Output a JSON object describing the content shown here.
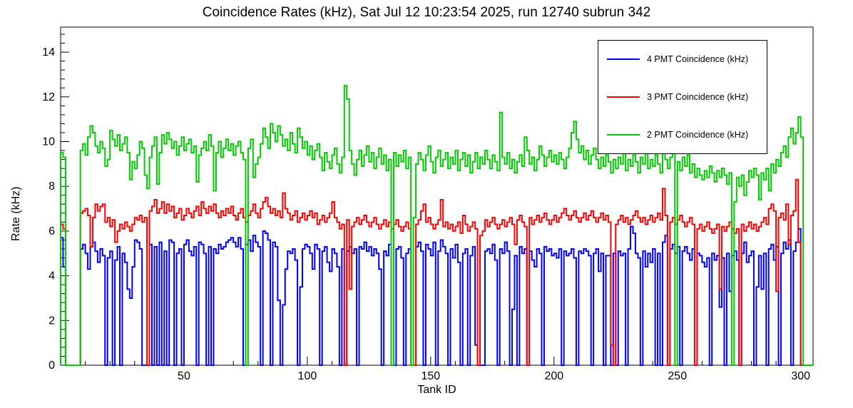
{
  "title": "Coincidence Rates (kHz), Sat Jul 12 10:23:54 2025, run 12740 subrun 342",
  "chart_data": {
    "type": "line",
    "style": "step-histogram",
    "title": "Coincidence Rates (kHz), Sat Jul 12 10:23:54 2025, run 12740 subrun 342",
    "xlabel": "Tank ID",
    "ylabel": "Rate (kHz)",
    "xlim": [
      0,
      305
    ],
    "ylim": [
      0,
      15.12
    ],
    "grid": false,
    "legend_position": "top-right",
    "x_major_ticks": [
      50,
      100,
      150,
      200,
      250,
      300
    ],
    "x_minor_step": 10,
    "y_major_ticks": [
      0,
      2,
      4,
      6,
      8,
      10,
      12,
      14
    ],
    "y_minor_step": 0.4,
    "series": [
      {
        "name": "4 PMT Coincidence (kHz)",
        "color": "#0000ff",
        "values": [
          5.7,
          4.4,
          0,
          0,
          0,
          0,
          0,
          0,
          5.2,
          5.4,
          5.0,
          4.3,
          5.3,
          5.5,
          5.1,
          4.6,
          5.2,
          4.9,
          0,
          4.8,
          5.1,
          0,
          4.7,
          5.3,
          0,
          5.0,
          4.6,
          3.4,
          3.0,
          4.4,
          5.6,
          5.5,
          5.2,
          0,
          0,
          0,
          5.4,
          0,
          5.3,
          0,
          5.5,
          0,
          5.1,
          0,
          5.6,
          5.5,
          0,
          5.0,
          5.2,
          0,
          5.4,
          5.6,
          5.1,
          4.9,
          5.3,
          0,
          5.5,
          5.4,
          5.0,
          0,
          5.3,
          0,
          5.2,
          5.0,
          5.4,
          5.2,
          5.3,
          5.5,
          5.6,
          5.7,
          5.5,
          5.3,
          5.7,
          5.2,
          0,
          5.4,
          5.6,
          5.1,
          5.8,
          5.5,
          5.3,
          0,
          6.0,
          5.9,
          5.6,
          0,
          5.5,
          5.3,
          2.9,
          0,
          2.7,
          4.3,
          5.1,
          5.0,
          5.2,
          4.7,
          0,
          3.5,
          5.2,
          5.4,
          5.3,
          5.0,
          4.3,
          5.4,
          5.2,
          0,
          5.1,
          5.3,
          4.6,
          4.2,
          5.2,
          5.0,
          4.4,
          0,
          5.2,
          0,
          5.1,
          5.3,
          5.0,
          5.2,
          0,
          5.3,
          5.2,
          5.5,
          5.1,
          5.3,
          4.9,
          5.2,
          5.0,
          4.3,
          0,
          5.1,
          4.9,
          5.4,
          0,
          0,
          5.2,
          5.3,
          4.8,
          0,
          5.0,
          5.2,
          0,
          0,
          5.3,
          5.5,
          5.1,
          0,
          5.4,
          5.2,
          4.9,
          5.5,
          0,
          5.1,
          5.6,
          5.3,
          5.0,
          0,
          5.2,
          4.8,
          5.4,
          4.6,
          0,
          5.0,
          5.2,
          0,
          4.9,
          5.3,
          0.9,
          0,
          0,
          0,
          5.1,
          5.2,
          5.0,
          5.4,
          4.7,
          0,
          5.2,
          5.0,
          5.5,
          5.1,
          0,
          2.5,
          4.9,
          0,
          5.3,
          5.0,
          5.2,
          0,
          5.1,
          4.7,
          4.4,
          5.2,
          5.0,
          0,
          5.3,
          5.1,
          5.2,
          4.9,
          5.0,
          4.8,
          5.2,
          0,
          5.1,
          4.9,
          5.0,
          5.2,
          4.8,
          0,
          5.1,
          5.0,
          5.2,
          5.1,
          4.9,
          0,
          5.0,
          5.2,
          4.2,
          5.0,
          0,
          4.9,
          4.9,
          0,
          5.0,
          0,
          5.1,
          4.9,
          5.0,
          0,
          5.2,
          6.2,
          5.9,
          5.0,
          4.8,
          0,
          5.1,
          4.4,
          5.0,
          4.6,
          5.2,
          0,
          5.0,
          0,
          5.5,
          5.8,
          0,
          5.2,
          5.4,
          5.0,
          5.3,
          0,
          5.1,
          5.3,
          5.0,
          4.7,
          5.2,
          0,
          5.0,
          4.9,
          4.6,
          4.4,
          4.8,
          0,
          5.0,
          4.7,
          4.9,
          2.6,
          4.8,
          0,
          5.0,
          3.3,
          4.9,
          5.1,
          4.7,
          0,
          5.0,
          5.5,
          4.6,
          4.9,
          5.1,
          0,
          3.5,
          4.9,
          3.4,
          5.0,
          0,
          5.2,
          5.4,
          4.7,
          5.3,
          0,
          5.0,
          5.5,
          5.2,
          5.6,
          0,
          5.1,
          5.5,
          6.1,
          0,
          0,
          0,
          0,
          0
        ]
      },
      {
        "name": "3 PMT Coincidence (kHz)",
        "color": "#ff0000",
        "values": [
          6.3,
          6.1,
          0,
          0,
          0,
          0,
          0,
          0,
          6.8,
          6.9,
          7.0,
          6.7,
          5.3,
          6.6,
          7.2,
          6.9,
          7.1,
          7.2,
          6.4,
          6.6,
          6.2,
          6.5,
          5.5,
          6.0,
          6.3,
          6.1,
          6.4,
          6.2,
          6.0,
          6.3,
          6.6,
          6.5,
          6.7,
          6.4,
          6.6,
          0,
          6.9,
          7.1,
          7.4,
          6.8,
          7.0,
          7.3,
          6.8,
          7.2,
          6.9,
          7.1,
          6.6,
          6.8,
          7.0,
          6.5,
          6.7,
          7.0,
          6.8,
          6.6,
          6.9,
          7.1,
          6.7,
          7.3,
          7.0,
          6.8,
          7.1,
          6.9,
          7.2,
          6.8,
          6.6,
          6.9,
          6.7,
          7.0,
          6.8,
          7.1,
          6.7,
          6.5,
          6.8,
          7.0,
          6.6,
          6.4,
          6.7,
          6.9,
          7.2,
          6.8,
          6.6,
          7.0,
          7.3,
          7.5,
          7.1,
          6.8,
          7.0,
          6.7,
          6.9,
          6.6,
          7.7,
          7.0,
          6.8,
          6.5,
          6.7,
          6.9,
          6.4,
          6.6,
          6.8,
          6.5,
          6.7,
          6.9,
          6.6,
          6.8,
          6.3,
          6.5,
          6.7,
          6.4,
          6.6,
          6.8,
          7.3,
          6.6,
          6.4,
          6.1,
          6.3,
          0,
          6.5,
          3.4,
          6.2,
          6.4,
          6.6,
          6.3,
          6.5,
          6.7,
          6.4,
          6.2,
          6.4,
          6.6,
          6.3,
          6.1,
          6.3,
          6.5,
          6.2,
          6.4,
          6.1,
          6.3,
          6.5,
          6.2,
          6.0,
          6.2,
          6.4,
          6.1,
          0,
          0,
          6.3,
          6.5,
          6.9,
          7.2,
          6.4,
          6.6,
          6.3,
          6.1,
          6.3,
          6.5,
          7.4,
          6.2,
          6.4,
          6.1,
          6.3,
          6.0,
          6.2,
          6.4,
          5.9,
          6.7,
          6.3,
          6.0,
          6.2,
          6.4,
          6.1,
          0,
          5.8,
          6.0,
          6.5,
          6.2,
          6.4,
          6.6,
          6.3,
          6.1,
          6.3,
          6.5,
          6.2,
          6.4,
          6.6,
          6.3,
          5.4,
          6.5,
          6.7,
          6.4,
          6.2,
          0,
          6.6,
          6.3,
          6.5,
          6.7,
          6.4,
          6.6,
          6.8,
          6.5,
          6.3,
          6.5,
          6.7,
          6.4,
          6.6,
          6.8,
          7.0,
          6.7,
          6.5,
          6.7,
          6.9,
          6.6,
          6.4,
          6.6,
          6.8,
          6.5,
          6.7,
          6.9,
          6.6,
          6.4,
          6.6,
          6.8,
          6.5,
          6.7,
          6.4,
          0.9,
          0,
          6.3,
          6.5,
          6.7,
          6.4,
          6.6,
          6.3,
          6.5,
          6.7,
          6.9,
          6.6,
          6.4,
          6.6,
          6.3,
          6.5,
          6.7,
          6.4,
          6.6,
          6.8,
          6.5,
          7.9,
          6.7,
          0,
          6.4,
          6.6,
          6.3,
          6.5,
          6.7,
          6.4,
          6.2,
          6.4,
          6.6,
          6.3,
          0,
          6.1,
          6.3,
          6.0,
          6.2,
          6.4,
          6.1,
          5.9,
          6.1,
          6.3,
          3.4,
          6.2,
          6.0,
          6.2,
          6.4,
          6.1,
          5.9,
          6.1,
          0,
          6.3,
          6.0,
          6.2,
          6.4,
          6.1,
          6.3,
          6.0,
          6.2,
          6.4,
          6.6,
          6.3,
          7.0,
          7.2,
          6.9,
          3.3,
          6.6,
          6.8,
          6.5,
          7.2,
          5.4,
          6.7,
          6.9,
          8.3,
          5.5,
          0,
          0,
          0,
          0,
          0
        ]
      },
      {
        "name": "2 PMT Coincidence (kHz)",
        "color": "#00cc00",
        "values": [
          9.5,
          9.3,
          0,
          0,
          0,
          0,
          0,
          0,
          9.6,
          9.9,
          9.4,
          10.2,
          10.7,
          10.4,
          9.8,
          9.5,
          10.0,
          9.7,
          8.9,
          9.2,
          10.5,
          10.1,
          9.8,
          10.3,
          9.6,
          9.9,
          10.2,
          9.5,
          8.3,
          9.1,
          8.8,
          9.4,
          10.0,
          9.7,
          8.5,
          7.9,
          9.3,
          9.8,
          10.2,
          8.1,
          9.5,
          10.3,
          9.9,
          10.4,
          10.1,
          9.7,
          10.0,
          9.4,
          9.8,
          10.2,
          9.6,
          9.9,
          10.1,
          9.5,
          9.8,
          8.2,
          9.4,
          9.7,
          10.0,
          9.6,
          10.3,
          9.8,
          7.8,
          9.5,
          10.0,
          9.3,
          9.7,
          10.1,
          9.6,
          9.9,
          9.4,
          9.8,
          10.0,
          9.5,
          9.2,
          0,
          9.7,
          10.1,
          8.4,
          9.0,
          9.3,
          9.9,
          10.6,
          10.2,
          9.7,
          10.8,
          10.4,
          10.0,
          10.7,
          10.3,
          9.8,
          10.1,
          9.6,
          10.4,
          9.9,
          9.5,
          10.6,
          10.2,
          9.7,
          10.0,
          9.4,
          9.8,
          9.2,
          9.6,
          9.9,
          9.3,
          8.7,
          9.5,
          9.1,
          8.8,
          9.4,
          9.7,
          9.0,
          8.6,
          9.3,
          12.5,
          11.9,
          9.6,
          9.0,
          8.5,
          9.2,
          9.6,
          8.9,
          9.4,
          9.8,
          9.1,
          9.5,
          8.8,
          9.3,
          9.7,
          9.0,
          9.4,
          8.7,
          9.2,
          0,
          9.5,
          8.9,
          9.4,
          9.1,
          9.6,
          8.8,
          9.3,
          0,
          6.6,
          9.0,
          9.5,
          9.2,
          8.7,
          9.4,
          9.8,
          9.1,
          8.6,
          9.3,
          9.6,
          8.9,
          9.2,
          9.5,
          8.8,
          9.3,
          9.0,
          9.6,
          8.7,
          9.2,
          9.5,
          8.9,
          9.4,
          8.6,
          9.1,
          9.5,
          8.8,
          9.3,
          9.0,
          9.6,
          9.2,
          8.8,
          9.4,
          9.1,
          8.7,
          11.3,
          9.3,
          9.0,
          9.5,
          8.8,
          9.2,
          8.6,
          9.1,
          9.4,
          8.9,
          10.2,
          9.6,
          9.0,
          9.3,
          8.7,
          9.2,
          9.8,
          9.4,
          8.9,
          9.3,
          9.6,
          9.1,
          9.4,
          9.0,
          9.5,
          9.2,
          8.8,
          9.3,
          9.7,
          10.4,
          10.9,
          10.1,
          9.5,
          9.8,
          9.2,
          9.6,
          9.0,
          9.4,
          9.7,
          9.2,
          8.8,
          9.3,
          8.9,
          9.4,
          9.1,
          8.6,
          9.2,
          8.8,
          9.3,
          9.0,
          9.5,
          8.7,
          9.2,
          8.9,
          9.4,
          9.1,
          8.6,
          9.3,
          9.0,
          9.5,
          8.8,
          9.2,
          8.9,
          9.4,
          9.0,
          8.6,
          11.0,
          9.2,
          8.8,
          9.3,
          9.6,
          0,
          9.1,
          8.7,
          9.3,
          8.9,
          9.4,
          8.6,
          9.0,
          8.4,
          8.8,
          8.5,
          8.3,
          8.7,
          8.4,
          8.9,
          8.6,
          8.2,
          8.7,
          8.4,
          8.8,
          8.5,
          8.1,
          8.6,
          0,
          7.3,
          8.4,
          8.0,
          8.5,
          7.6,
          8.2,
          8.7,
          8.4,
          8.8,
          8.5,
          7.4,
          8.6,
          8.3,
          8.8,
          7.8,
          9.0,
          8.6,
          9.2,
          8.9,
          9.5,
          9.8,
          9.3,
          10.2,
          10.6,
          9.9,
          10.4,
          11.1,
          10.2,
          0,
          0,
          0,
          0
        ]
      }
    ]
  }
}
